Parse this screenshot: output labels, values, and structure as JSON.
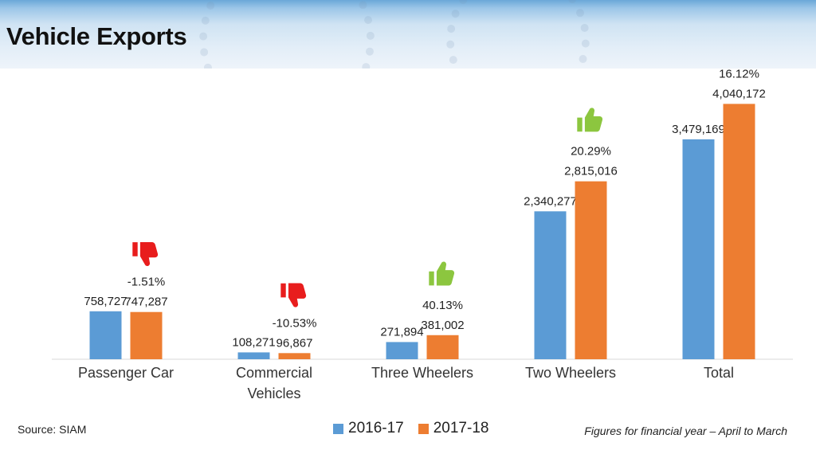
{
  "page": {
    "title": "Vehicle Exports"
  },
  "footer": {
    "source": "Source: SIAM",
    "note": "Figures for financial year – April to March"
  },
  "chart_data": {
    "type": "bar",
    "title": "",
    "xlabel": "",
    "ylabel": "",
    "ylim": [
      0,
      4600000
    ],
    "grid": false,
    "legend_position": "bottom",
    "categories": [
      "Passenger Car",
      "Commercial Vehicles",
      "Three Wheelers",
      "Two Wheelers",
      "Total"
    ],
    "category_lines": [
      [
        "Passenger Car"
      ],
      [
        "Commercial",
        "Vehicles"
      ],
      [
        "Three Wheelers"
      ],
      [
        "Two Wheelers"
      ],
      [
        "Total"
      ]
    ],
    "series": [
      {
        "name": "2016-17",
        "color": "#5b9bd5",
        "values": [
          758727,
          108271,
          271894,
          2340277,
          3479169
        ],
        "labels": [
          "758,727",
          "108,271",
          "271,894",
          "2,340,277",
          "3,479,169"
        ]
      },
      {
        "name": "2017-18",
        "color": "#ed7d31",
        "values": [
          747287,
          96867,
          381002,
          2815016,
          4040172
        ],
        "labels": [
          "747,287",
          "96,867",
          "381,002",
          "2,815,016",
          "4,040,172"
        ]
      }
    ],
    "annotations": [
      {
        "category": "Passenger Car",
        "change": "-1.51%",
        "icon": "thumbs-down-icon",
        "color": "#e81d1d"
      },
      {
        "category": "Commercial Vehicles",
        "change": "-10.53%",
        "icon": "thumbs-down-icon",
        "color": "#e81d1d"
      },
      {
        "category": "Three Wheelers",
        "change": "40.13%",
        "icon": "thumbs-up-icon",
        "color": "#8cc63f"
      },
      {
        "category": "Two Wheelers",
        "change": "20.29%",
        "icon": "thumbs-up-icon",
        "color": "#8cc63f"
      },
      {
        "category": "Total",
        "change": "16.12%",
        "icon": "thumbs-up-icon",
        "color": "#8cc63f"
      }
    ]
  }
}
